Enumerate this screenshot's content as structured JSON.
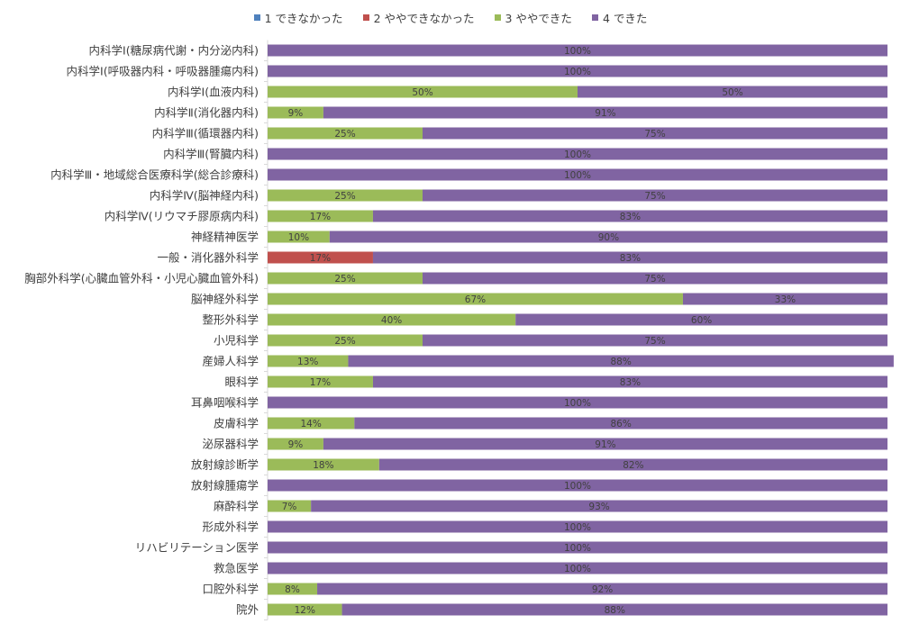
{
  "chart_data": {
    "type": "bar",
    "orientation": "horizontal",
    "stacked": "percent",
    "title": "",
    "xlabel": "",
    "ylabel": "",
    "xlim": [
      0,
      100
    ],
    "grid": false,
    "legend_position": "top",
    "series": [
      {
        "name": "1 できなかった",
        "color": "#4F81BD"
      },
      {
        "name": "2 ややできなかった",
        "color": "#C0504D"
      },
      {
        "name": "3 ややできた",
        "color": "#9BBB59"
      },
      {
        "name": "4 できた",
        "color": "#8064A2"
      }
    ],
    "categories": [
      "内科学Ⅰ(糖尿病代謝・内分泌内科)",
      "内科学Ⅰ(呼吸器内科・呼吸器腫瘍内科)",
      "内科学Ⅰ(血液内科)",
      "内科学Ⅱ(消化器内科)",
      "内科学Ⅲ(循環器内科)",
      "内科学Ⅲ(腎臓内科)",
      "内科学Ⅲ・地域総合医療科学(総合診療科)",
      "内科学Ⅳ(脳神経内科)",
      "内科学Ⅳ(リウマチ膠原病内科)",
      "神経精神医学",
      "一般・消化器外科学",
      "胸部外科学(心臓血管外科・小児心臓血管外科)",
      "脳神経外科学",
      "整形外科学",
      "小児科学",
      "産婦人科学",
      "眼科学",
      "耳鼻咽喉科学",
      "皮膚科学",
      "泌尿器科学",
      "放射線診断学",
      "放射線腫瘍学",
      "麻酔科学",
      "形成外科学",
      "リハビリテーション医学",
      "救急医学",
      "口腔外科学",
      "院外"
    ],
    "values": [
      [
        0,
        0,
        0,
        100
      ],
      [
        0,
        0,
        0,
        100
      ],
      [
        0,
        0,
        50,
        50
      ],
      [
        0,
        0,
        9,
        91
      ],
      [
        0,
        0,
        25,
        75
      ],
      [
        0,
        0,
        0,
        100
      ],
      [
        0,
        0,
        0,
        100
      ],
      [
        0,
        0,
        25,
        75
      ],
      [
        0,
        0,
        17,
        83
      ],
      [
        0,
        0,
        10,
        90
      ],
      [
        0,
        17,
        0,
        83
      ],
      [
        0,
        0,
        25,
        75
      ],
      [
        0,
        0,
        67,
        33
      ],
      [
        0,
        0,
        40,
        60
      ],
      [
        0,
        0,
        25,
        75
      ],
      [
        0,
        0,
        13,
        88
      ],
      [
        0,
        0,
        17,
        83
      ],
      [
        0,
        0,
        0,
        100
      ],
      [
        0,
        0,
        14,
        86
      ],
      [
        0,
        0,
        9,
        91
      ],
      [
        0,
        0,
        18,
        82
      ],
      [
        0,
        0,
        0,
        100
      ],
      [
        0,
        0,
        7,
        93
      ],
      [
        0,
        0,
        0,
        100
      ],
      [
        0,
        0,
        0,
        100
      ],
      [
        0,
        0,
        0,
        100
      ],
      [
        0,
        0,
        8,
        92
      ],
      [
        0,
        0,
        12,
        88
      ]
    ]
  }
}
